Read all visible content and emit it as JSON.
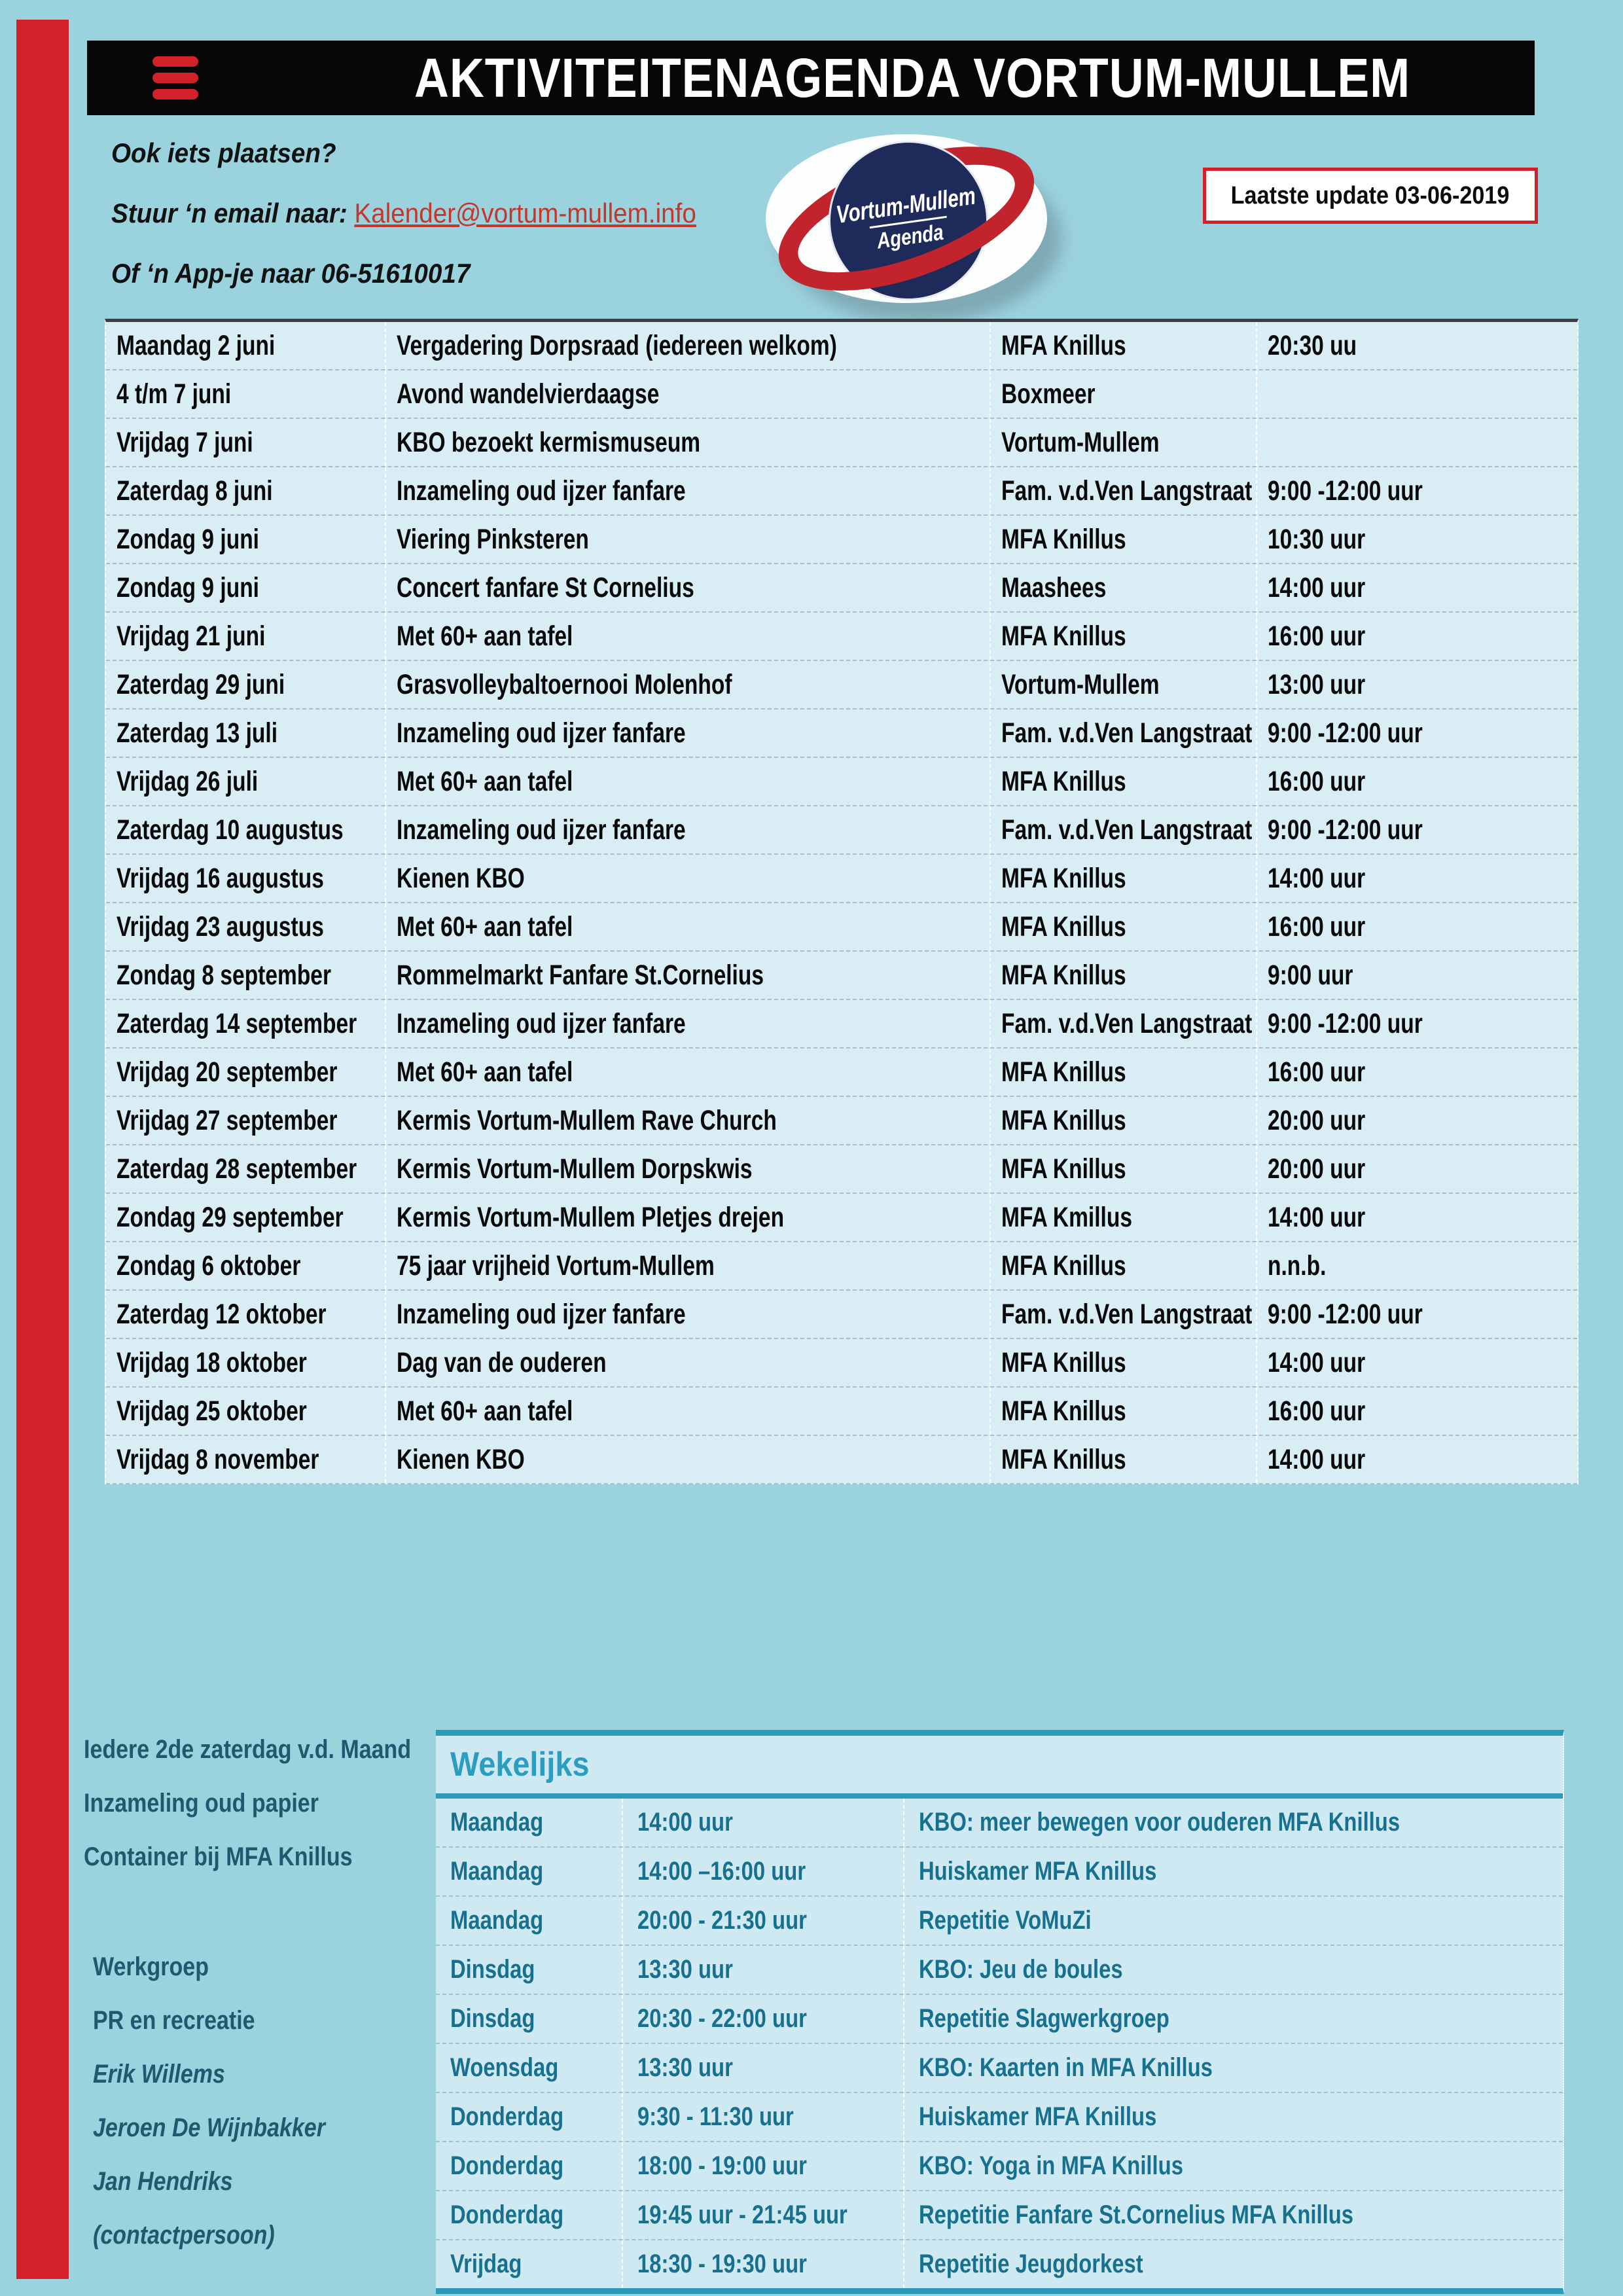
{
  "header": {
    "title": "AKTIVITEITENAGENDA VORTUM-MULLEM",
    "last_update": "Laatste update 03-06-2019",
    "menu_icon": "hamburger-icon",
    "accent_red": "#d3212a",
    "bar_black": "#070707"
  },
  "contact": {
    "line1": "Ook iets plaatsen?",
    "line2_label": "Stuur ‘n email naar: ",
    "email": "Kalender@vortum-mullem.info",
    "line3": "Of ‘n App-je naar 06-51610017"
  },
  "logo": {
    "line1": "Vortum-Mullem",
    "line2": "Agenda",
    "circle_color": "#1e2a5a",
    "ring_color": "#c2242e"
  },
  "agenda": {
    "rows": [
      {
        "date": "Maandag 2 juni",
        "event": "Vergadering Dorpsraad (iedereen welkom)",
        "location": "MFA Knillus",
        "time": "20:30 uu"
      },
      {
        "date": "4 t/m 7 juni",
        "event": "Avond wandelvierdaagse",
        "location": "Boxmeer",
        "time": ""
      },
      {
        "date": "Vrijdag 7 juni",
        "event": "KBO bezoekt kermismuseum",
        "location": "Vortum-Mullem",
        "time": ""
      },
      {
        "date": "Zaterdag 8 juni",
        "event": "Inzameling oud ijzer fanfare",
        "location": "Fam. v.d.Ven Langstraat",
        "time": "9:00 -12:00 uur"
      },
      {
        "date": "Zondag 9 juni",
        "event": "Viering Pinksteren",
        "location": "MFA Knillus",
        "time": "10:30 uur"
      },
      {
        "date": "Zondag 9 juni",
        "event": "Concert fanfare St Cornelius",
        "location": "Maashees",
        "time": "14:00 uur"
      },
      {
        "date": "Vrijdag 21 juni",
        "event": "Met 60+ aan tafel",
        "location": "MFA Knillus",
        "time": "16:00 uur"
      },
      {
        "date": "Zaterdag 29 juni",
        "event": "Grasvolleybaltoernooi Molenhof",
        "location": "Vortum-Mullem",
        "time": "13:00 uur"
      },
      {
        "date": "Zaterdag 13 juli",
        "event": "Inzameling oud ijzer fanfare",
        "location": "Fam. v.d.Ven Langstraat",
        "time": "9:00 -12:00 uur"
      },
      {
        "date": "Vrijdag 26 juli",
        "event": "Met 60+ aan tafel",
        "location": "MFA Knillus",
        "time": "16:00 uur"
      },
      {
        "date": "Zaterdag 10 augustus",
        "event": "Inzameling oud ijzer fanfare",
        "location": "Fam. v.d.Ven Langstraat",
        "time": "9:00 -12:00 uur"
      },
      {
        "date": "Vrijdag 16 augustus",
        "event": "Kienen KBO",
        "location": "MFA Knillus",
        "time": "14:00 uur"
      },
      {
        "date": "Vrijdag 23 augustus",
        "event": "Met 60+ aan tafel",
        "location": "MFA Knillus",
        "time": "16:00 uur"
      },
      {
        "date": "Zondag 8 september",
        "event": "Rommelmarkt Fanfare St.Cornelius",
        "location": "MFA Knillus",
        "time": "9:00 uur"
      },
      {
        "date": "Zaterdag 14 september",
        "event": "Inzameling oud ijzer fanfare",
        "location": "Fam. v.d.Ven Langstraat",
        "time": "9:00 -12:00 uur"
      },
      {
        "date": "Vrijdag 20 september",
        "event": "Met 60+ aan tafel",
        "location": "MFA Knillus",
        "time": "16:00 uur"
      },
      {
        "date": "Vrijdag 27 september",
        "event": "Kermis Vortum-Mullem Rave Church",
        "location": "MFA Knillus",
        "time": "20:00 uur"
      },
      {
        "date": "Zaterdag 28 september",
        "event": "Kermis Vortum-Mullem Dorpskwis",
        "location": "MFA Knillus",
        "time": "20:00 uur"
      },
      {
        "date": "Zondag 29 september",
        "event": "Kermis Vortum-Mullem Pletjes drejen",
        "location": "MFA Kmillus",
        "time": "14:00 uur"
      },
      {
        "date": "Zondag 6 oktober",
        "event": "75 jaar vrijheid Vortum-Mullem",
        "location": "MFA Knillus",
        "time": "n.n.b."
      },
      {
        "date": "Zaterdag 12 oktober",
        "event": "Inzameling oud ijzer fanfare",
        "location": "Fam. v.d.Ven Langstraat",
        "time": "9:00 -12:00 uur"
      },
      {
        "date": "Vrijdag 18 oktober",
        "event": "Dag van de ouderen",
        "location": "MFA Knillus",
        "time": "14:00 uur"
      },
      {
        "date": "Vrijdag 25 oktober",
        "event": "Met 60+ aan tafel",
        "location": "MFA Knillus",
        "time": "16:00 uur"
      },
      {
        "date": "Vrijdag 8 november",
        "event": "Kienen KBO",
        "location": "MFA Knillus",
        "time": "14:00 uur"
      }
    ]
  },
  "notes": {
    "paper": [
      "Iedere 2de zaterdag v.d. Maand",
      "Inzameling oud papier",
      "Container bij MFA Knillus"
    ],
    "workgroup": [
      {
        "text": "Werkgroep",
        "italic": false
      },
      {
        "text": "PR en recreatie",
        "italic": false
      },
      {
        "text": "Erik Willems",
        "italic": true
      },
      {
        "text": "Jeroen De Wijnbakker",
        "italic": true
      },
      {
        "text": "Jan Hendriks",
        "italic": true
      },
      {
        "text": "(contactpersoon)",
        "italic": true
      }
    ]
  },
  "weekly": {
    "title": "Wekelijks",
    "teal": "#2d99b8",
    "rows": [
      {
        "day": "Maandag",
        "time": "14:00 uur",
        "activity": "KBO: meer bewegen voor ouderen MFA Knillus"
      },
      {
        "day": "Maandag",
        "time": "14:00 –16:00 uur",
        "activity": "Huiskamer MFA Knillus"
      },
      {
        "day": "Maandag",
        "time": "20:00 -  21:30 uur",
        "activity": "Repetitie VoMuZi"
      },
      {
        "day": "Dinsdag",
        "time": "13:30 uur",
        "activity": "KBO: Jeu de boules"
      },
      {
        "day": "Dinsdag",
        "time": "20:30  - 22:00 uur",
        "activity": "Repetitie Slagwerkgroep"
      },
      {
        "day": "Woensdag",
        "time": "13:30 uur",
        "activity": "KBO: Kaarten in MFA Knillus"
      },
      {
        "day": "Donderdag",
        "time": "9:30 - 11:30 uur",
        "activity": "Huiskamer MFA Knillus"
      },
      {
        "day": "Donderdag",
        "time": "18:00 -  19:00 uur",
        "activity": "KBO: Yoga in MFA Knillus"
      },
      {
        "day": "Donderdag",
        "time": "19:45 uur -  21:45 uur",
        "activity": "Repetitie Fanfare St.Cornelius MFA Knillus"
      },
      {
        "day": "Vrijdag",
        "time": "18:30 - 19:30 uur",
        "activity": "Repetitie Jeugdorkest"
      }
    ]
  }
}
